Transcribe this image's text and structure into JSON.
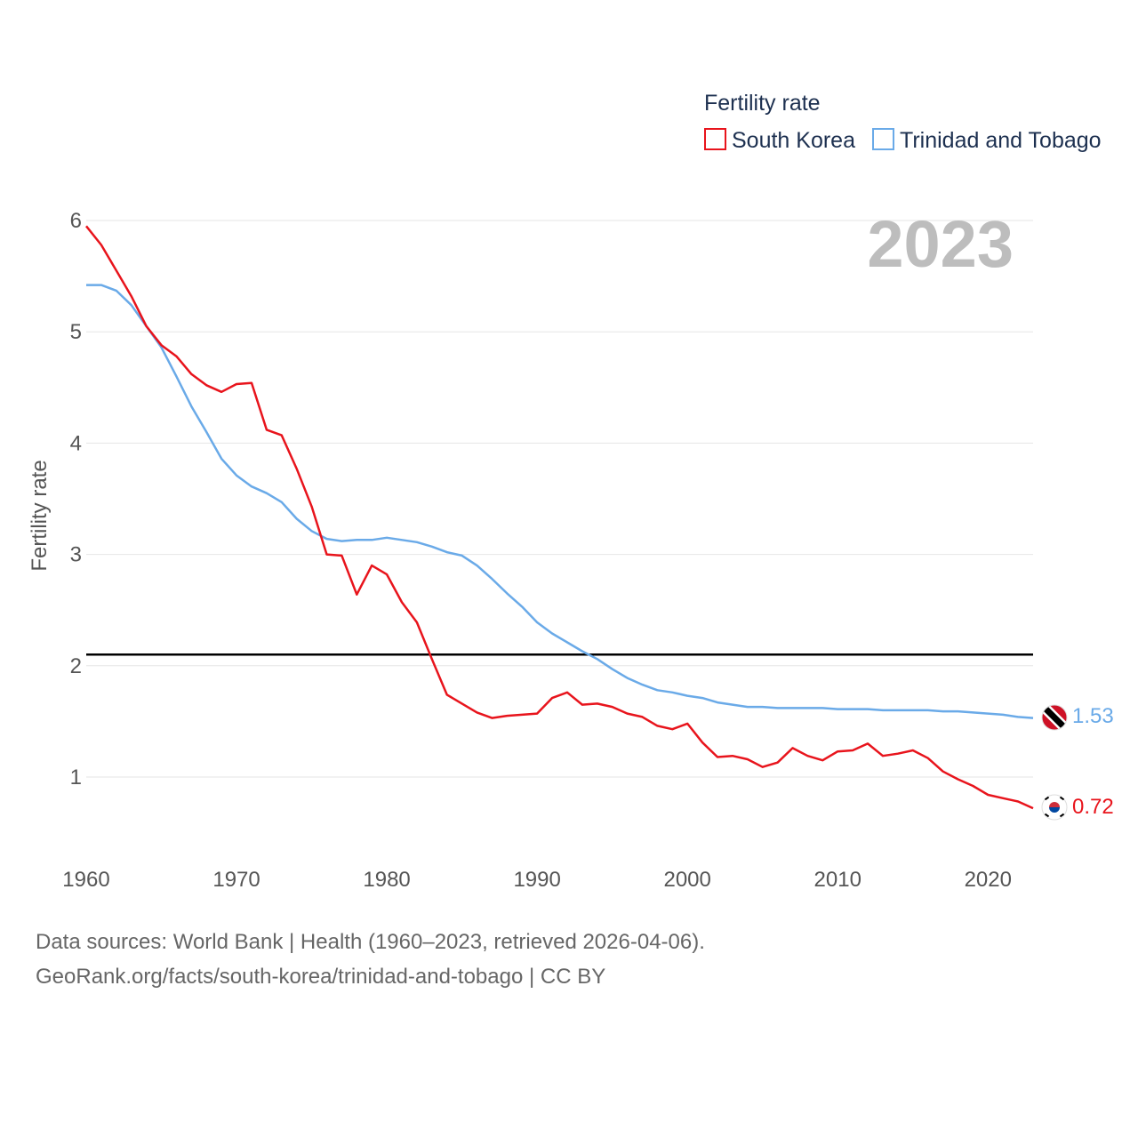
{
  "chart_data": {
    "type": "line",
    "title": "",
    "ylabel": "Fertility rate",
    "xlabel": "",
    "legend": {
      "title": "Fertility rate",
      "position": "top-right"
    },
    "year_label": "2023",
    "xlim": [
      1960,
      2023
    ],
    "ylim": [
      0.5,
      6.1
    ],
    "x_ticks": [
      1960,
      1970,
      1980,
      1990,
      2000,
      2010,
      2020
    ],
    "y_ticks": [
      1,
      2,
      3,
      4,
      5,
      6
    ],
    "reference_line": {
      "value": 2.1,
      "color": "#000000"
    },
    "x": [
      1960,
      1961,
      1962,
      1963,
      1964,
      1965,
      1966,
      1967,
      1968,
      1969,
      1970,
      1971,
      1972,
      1973,
      1974,
      1975,
      1976,
      1977,
      1978,
      1979,
      1980,
      1981,
      1982,
      1983,
      1984,
      1985,
      1986,
      1987,
      1988,
      1989,
      1990,
      1991,
      1992,
      1993,
      1994,
      1995,
      1996,
      1997,
      1998,
      1999,
      2000,
      2001,
      2002,
      2003,
      2004,
      2005,
      2006,
      2007,
      2008,
      2009,
      2010,
      2011,
      2012,
      2013,
      2014,
      2015,
      2016,
      2017,
      2018,
      2019,
      2020,
      2021,
      2022,
      2023
    ],
    "series": [
      {
        "name": "South Korea",
        "color": "#e8141c",
        "end_label": "0.72",
        "flag": "south-korea-flag-icon",
        "values": [
          5.95,
          5.78,
          5.55,
          5.32,
          5.05,
          4.88,
          4.78,
          4.62,
          4.52,
          4.46,
          4.53,
          4.54,
          4.12,
          4.07,
          3.77,
          3.43,
          3.0,
          2.99,
          2.64,
          2.9,
          2.82,
          2.57,
          2.39,
          2.06,
          1.74,
          1.66,
          1.58,
          1.53,
          1.55,
          1.56,
          1.57,
          1.71,
          1.76,
          1.65,
          1.66,
          1.63,
          1.57,
          1.54,
          1.46,
          1.43,
          1.48,
          1.31,
          1.18,
          1.19,
          1.16,
          1.09,
          1.13,
          1.26,
          1.19,
          1.15,
          1.23,
          1.24,
          1.3,
          1.19,
          1.21,
          1.24,
          1.17,
          1.05,
          0.98,
          0.92,
          0.84,
          0.81,
          0.78,
          0.72
        ]
      },
      {
        "name": "Trinidad and Tobago",
        "color": "#6aaae8",
        "end_label": "1.53",
        "flag": "trinidad-and-tobago-flag-icon",
        "values": [
          5.42,
          5.42,
          5.37,
          5.24,
          5.05,
          4.86,
          4.6,
          4.33,
          4.1,
          3.86,
          3.71,
          3.61,
          3.55,
          3.47,
          3.32,
          3.21,
          3.14,
          3.12,
          3.13,
          3.13,
          3.15,
          3.13,
          3.11,
          3.07,
          3.02,
          2.99,
          2.9,
          2.78,
          2.65,
          2.53,
          2.39,
          2.29,
          2.21,
          2.13,
          2.06,
          1.97,
          1.89,
          1.83,
          1.78,
          1.76,
          1.73,
          1.71,
          1.67,
          1.65,
          1.63,
          1.63,
          1.62,
          1.62,
          1.62,
          1.62,
          1.61,
          1.61,
          1.61,
          1.6,
          1.6,
          1.6,
          1.6,
          1.59,
          1.59,
          1.58,
          1.57,
          1.56,
          1.54,
          1.53
        ]
      }
    ]
  },
  "footer": {
    "source_line": "Data sources: World Bank | Health (1960–2023, retrieved 2026-04-06).",
    "url_line": "GeoRank.org/facts/south-korea/trinidad-and-tobago | CC BY"
  }
}
